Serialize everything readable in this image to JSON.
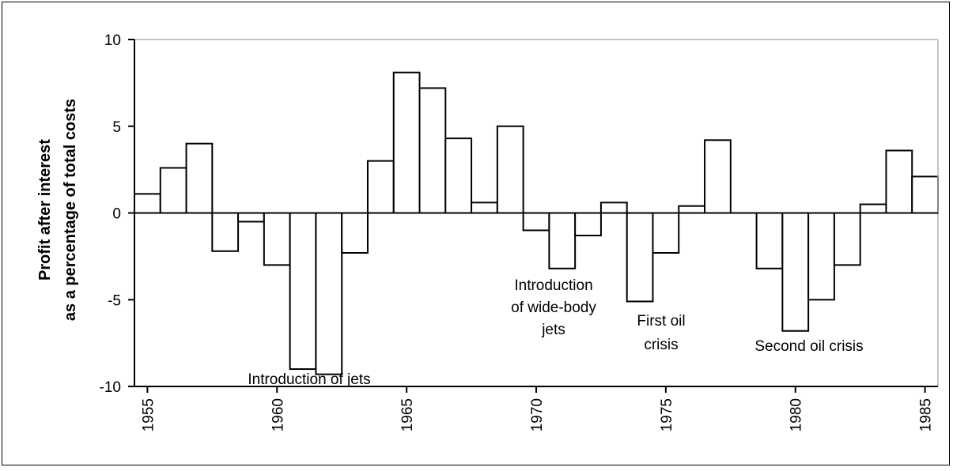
{
  "chart_data": {
    "type": "bar",
    "title": "",
    "xlabel": "",
    "ylabel_lines": [
      "Profit after interest",
      "as a percentage of total costs"
    ],
    "ylim": [
      -10,
      10
    ],
    "yticks": [
      "10",
      "5",
      "0",
      "-5",
      "-10"
    ],
    "yticks_values": [
      10,
      5,
      0,
      -5,
      -10
    ],
    "xtick_labels": [
      "1955",
      "1960",
      "1965",
      "1970",
      "1975",
      "1980",
      "1985"
    ],
    "xtick_values": [
      1955,
      1960,
      1965,
      1970,
      1975,
      1980,
      1985
    ],
    "grid": false,
    "bar_fill": "#ffffff",
    "bar_stroke": "#000000",
    "x": [
      1955,
      1956,
      1957,
      1958,
      1959,
      1960,
      1961,
      1962,
      1963,
      1964,
      1965,
      1966,
      1967,
      1968,
      1969,
      1970,
      1971,
      1972,
      1973,
      1974,
      1975,
      1976,
      1977,
      1978,
      1979,
      1980,
      1981,
      1982,
      1983,
      1984,
      1985
    ],
    "values": [
      1.1,
      2.6,
      4.0,
      -2.2,
      -0.5,
      -3.0,
      -9.0,
      -9.3,
      -2.3,
      3.0,
      8.1,
      7.2,
      4.3,
      0.6,
      5.0,
      -1.0,
      -3.2,
      -1.3,
      0.6,
      -5.1,
      -2.3,
      0.4,
      4.2,
      0.0,
      -3.2,
      -6.8,
      -5.0,
      -3.0,
      0.5,
      3.6,
      2.1
    ],
    "annotations": [
      {
        "lines": [
          "Introduction of jets"
        ]
      },
      {
        "lines": [
          "Introduction",
          "of wide-body",
          "jets"
        ]
      },
      {
        "lines": [
          "First oil",
          "crisis"
        ]
      },
      {
        "lines": [
          "Second oil crisis"
        ]
      }
    ]
  }
}
